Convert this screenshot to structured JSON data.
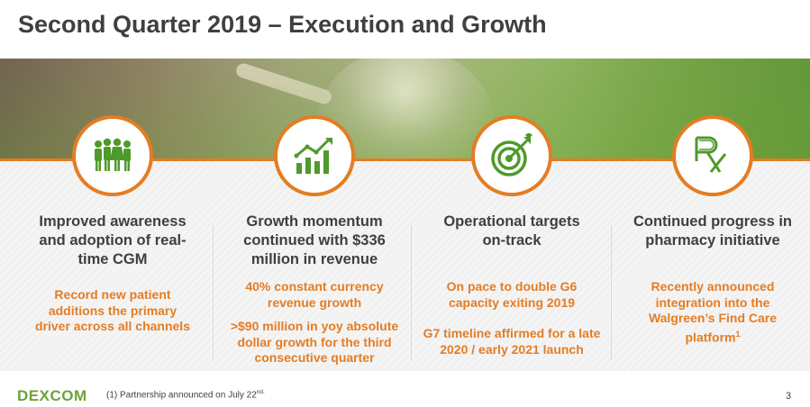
{
  "slide": {
    "title": "Second Quarter 2019 – Execution and Growth",
    "page_number": "3"
  },
  "colors": {
    "accent_orange": "#e37d24",
    "icon_green": "#4e9a2a",
    "text_dark": "#3f3f3f",
    "logo_green": "#6aa533"
  },
  "columns": [
    {
      "icon": "people-group-icon",
      "heading_lines": [
        "Improved awareness",
        "and adoption of real-",
        "time CGM"
      ],
      "body_lines": [
        "Record new patient",
        "additions the primary",
        "driver across all channels"
      ]
    },
    {
      "icon": "growth-chart-icon",
      "heading_lines": [
        "Growth momentum",
        "continued with $336",
        "million in revenue"
      ],
      "body_lines": [
        "40% constant currency",
        "revenue growth"
      ],
      "body2_lines": [
        ">$90 million in yoy absolute",
        "dollar growth for the third",
        "consecutive quarter"
      ]
    },
    {
      "icon": "target-icon",
      "heading_lines": [
        "Operational targets",
        "on-track"
      ],
      "body_lines": [
        "On pace to double G6",
        "capacity exiting 2019"
      ],
      "body2_lines": [
        "G7 timeline affirmed for a late",
        "2020 / early 2021 launch"
      ]
    },
    {
      "icon": "rx-icon",
      "heading_lines": [
        "Continued progress in",
        "pharmacy initiative"
      ],
      "body_lines": [
        "Recently announced",
        "integration into the",
        "Walgreen’s Find Care",
        "platform"
      ],
      "body_sup": "1"
    }
  ],
  "footer": {
    "logo": "DEXCOM",
    "footnote": "(1) Partnership announced on July 22",
    "footnote_sup": "nd."
  }
}
